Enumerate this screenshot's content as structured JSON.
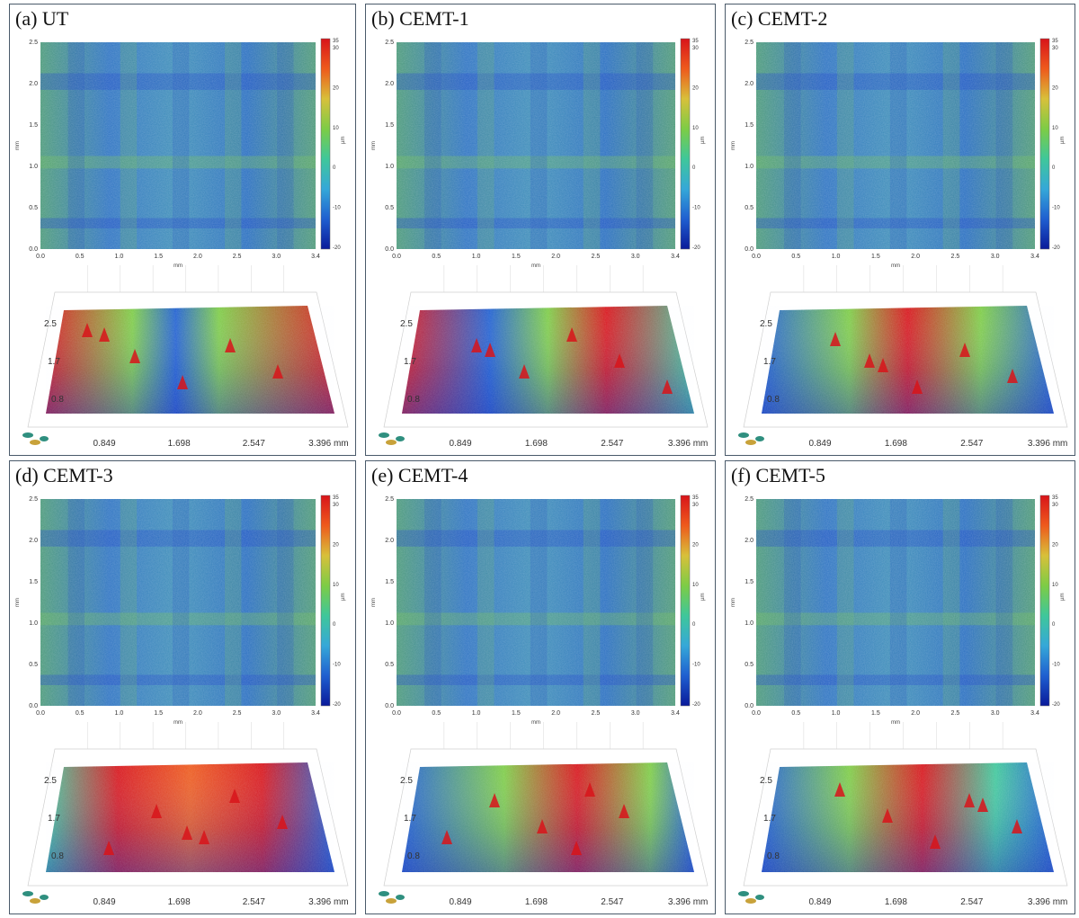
{
  "panels": [
    {
      "label": "(a) UT",
      "variant": 0
    },
    {
      "label": "(b) CEMT-1",
      "variant": 1
    },
    {
      "label": "(c) CEMT-2",
      "variant": 2
    },
    {
      "label": "(d) CEMT-3",
      "variant": 3
    },
    {
      "label": "(e) CEMT-4",
      "variant": 4
    },
    {
      "label": "(f) CEMT-5",
      "variant": 5
    }
  ],
  "map2d": {
    "x_ticks": [
      "0.0",
      "0.5",
      "1.0",
      "1.5",
      "2.0",
      "2.5",
      "3.0",
      "3.4"
    ],
    "y_ticks": [
      "0.0",
      "0.5",
      "1.0",
      "1.5",
      "2.0",
      "2.5"
    ],
    "x_unit": "mm",
    "y_unit": "mm",
    "colorbar_ticks": [
      "30",
      "20",
      "10",
      "0",
      "-10",
      "-20"
    ],
    "colorbar_top": "35",
    "colorbar_unit": "µm"
  },
  "surface3d": {
    "x_ticks": [
      "0.849",
      "1.698",
      "2.547",
      "3.396 mm"
    ],
    "y_ticks": [
      "2.5",
      "1.7",
      "0.8"
    ]
  },
  "colors": {
    "frame": "#4a5a6a",
    "scale": [
      "#0a1a9a",
      "#1f5fd0",
      "#35a8d8",
      "#3fc79a",
      "#7dcc45",
      "#d8c03a",
      "#ee5a1c",
      "#d8141a"
    ]
  }
}
